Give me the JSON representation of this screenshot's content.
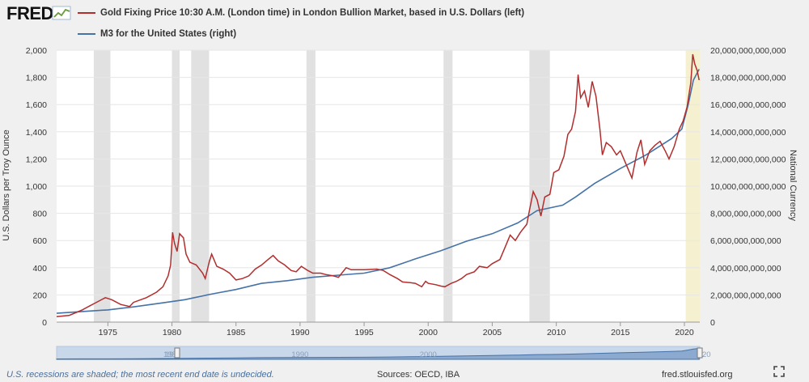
{
  "header": {
    "logo_text": "FRED"
  },
  "footer": {
    "note": "U.S. recessions are shaded; the most recent end date is undecided.",
    "sources": "Sources: OECD, IBA",
    "url": "fred.stlouisfed.org"
  },
  "chart_data": {
    "type": "line",
    "series": [
      {
        "name": "Gold Fixing Price 10:30 A.M. (London time) in London Bullion Market, based in U.S. Dollars (left)",
        "axis": "left",
        "color": "#b22e2e",
        "points": [
          [
            1971.0,
            40
          ],
          [
            1972.0,
            50
          ],
          [
            1973.0,
            90
          ],
          [
            1973.6,
            120
          ],
          [
            1974.0,
            140
          ],
          [
            1974.8,
            180
          ],
          [
            1975.3,
            165
          ],
          [
            1976.0,
            130
          ],
          [
            1976.7,
            115
          ],
          [
            1977.0,
            145
          ],
          [
            1978.0,
            180
          ],
          [
            1978.8,
            220
          ],
          [
            1979.3,
            260
          ],
          [
            1979.7,
            340
          ],
          [
            1979.9,
            420
          ],
          [
            1980.05,
            660
          ],
          [
            1980.2,
            580
          ],
          [
            1980.4,
            520
          ],
          [
            1980.6,
            650
          ],
          [
            1980.9,
            620
          ],
          [
            1981.1,
            500
          ],
          [
            1981.4,
            440
          ],
          [
            1981.9,
            420
          ],
          [
            1982.4,
            360
          ],
          [
            1982.6,
            320
          ],
          [
            1982.9,
            440
          ],
          [
            1983.1,
            500
          ],
          [
            1983.5,
            410
          ],
          [
            1984.0,
            390
          ],
          [
            1984.5,
            360
          ],
          [
            1985.0,
            310
          ],
          [
            1985.5,
            320
          ],
          [
            1986.0,
            340
          ],
          [
            1986.5,
            390
          ],
          [
            1987.0,
            420
          ],
          [
            1987.5,
            460
          ],
          [
            1987.9,
            490
          ],
          [
            1988.3,
            450
          ],
          [
            1988.8,
            420
          ],
          [
            1989.3,
            380
          ],
          [
            1989.7,
            370
          ],
          [
            1990.1,
            410
          ],
          [
            1990.6,
            380
          ],
          [
            1991.0,
            360
          ],
          [
            1991.6,
            360
          ],
          [
            1992.0,
            350
          ],
          [
            1992.6,
            340
          ],
          [
            1993.0,
            330
          ],
          [
            1993.6,
            400
          ],
          [
            1994.0,
            385
          ],
          [
            1995.0,
            385
          ],
          [
            1996.0,
            390
          ],
          [
            1996.5,
            380
          ],
          [
            1997.0,
            350
          ],
          [
            1997.6,
            320
          ],
          [
            1998.0,
            295
          ],
          [
            1998.6,
            290
          ],
          [
            1999.0,
            285
          ],
          [
            1999.5,
            260
          ],
          [
            1999.8,
            300
          ],
          [
            2000.0,
            285
          ],
          [
            2000.6,
            275
          ],
          [
            2001.0,
            265
          ],
          [
            2001.3,
            260
          ],
          [
            2001.8,
            285
          ],
          [
            2002.2,
            300
          ],
          [
            2002.6,
            320
          ],
          [
            2003.0,
            350
          ],
          [
            2003.6,
            370
          ],
          [
            2004.0,
            410
          ],
          [
            2004.6,
            400
          ],
          [
            2005.0,
            430
          ],
          [
            2005.6,
            460
          ],
          [
            2006.0,
            550
          ],
          [
            2006.4,
            640
          ],
          [
            2006.8,
            600
          ],
          [
            2007.2,
            660
          ],
          [
            2007.7,
            720
          ],
          [
            2007.9,
            820
          ],
          [
            2008.2,
            960
          ],
          [
            2008.5,
            900
          ],
          [
            2008.8,
            780
          ],
          [
            2009.1,
            920
          ],
          [
            2009.5,
            940
          ],
          [
            2009.8,
            1100
          ],
          [
            2010.2,
            1120
          ],
          [
            2010.6,
            1220
          ],
          [
            2010.9,
            1380
          ],
          [
            2011.2,
            1420
          ],
          [
            2011.5,
            1550
          ],
          [
            2011.7,
            1820
          ],
          [
            2011.9,
            1650
          ],
          [
            2012.2,
            1700
          ],
          [
            2012.5,
            1580
          ],
          [
            2012.8,
            1770
          ],
          [
            2013.1,
            1660
          ],
          [
            2013.4,
            1420
          ],
          [
            2013.6,
            1230
          ],
          [
            2013.9,
            1320
          ],
          [
            2014.3,
            1290
          ],
          [
            2014.7,
            1230
          ],
          [
            2015.0,
            1260
          ],
          [
            2015.5,
            1150
          ],
          [
            2015.9,
            1060
          ],
          [
            2016.3,
            1250
          ],
          [
            2016.6,
            1340
          ],
          [
            2016.9,
            1160
          ],
          [
            2017.3,
            1260
          ],
          [
            2017.7,
            1300
          ],
          [
            2018.1,
            1330
          ],
          [
            2018.5,
            1260
          ],
          [
            2018.8,
            1200
          ],
          [
            2019.2,
            1290
          ],
          [
            2019.6,
            1420
          ],
          [
            2019.9,
            1480
          ],
          [
            2020.2,
            1580
          ],
          [
            2020.5,
            1760
          ],
          [
            2020.65,
            1970
          ],
          [
            2020.8,
            1900
          ],
          [
            2021.0,
            1850
          ],
          [
            2021.15,
            1780
          ]
        ]
      },
      {
        "name": "M3 for the United States (right)",
        "axis": "right",
        "color": "#4572a7",
        "points": [
          [
            1971.0,
            650000000000
          ],
          [
            1973.0,
            780000000000
          ],
          [
            1975.0,
            900000000000
          ],
          [
            1977.0,
            1120000000000
          ],
          [
            1979.0,
            1380000000000
          ],
          [
            1981.0,
            1650000000000
          ],
          [
            1983.0,
            2050000000000
          ],
          [
            1985.0,
            2400000000000
          ],
          [
            1987.0,
            2850000000000
          ],
          [
            1989.0,
            3050000000000
          ],
          [
            1991.0,
            3300000000000
          ],
          [
            1993.0,
            3450000000000
          ],
          [
            1995.0,
            3600000000000
          ],
          [
            1997.0,
            4000000000000
          ],
          [
            1999.0,
            4650000000000
          ],
          [
            2001.0,
            5250000000000
          ],
          [
            2003.0,
            5950000000000
          ],
          [
            2005.0,
            6500000000000
          ],
          [
            2007.0,
            7300000000000
          ],
          [
            2008.5,
            8200000000000
          ],
          [
            2009.5,
            8400000000000
          ],
          [
            2010.5,
            8600000000000
          ],
          [
            2011.5,
            9200000000000
          ],
          [
            2013.0,
            10200000000000
          ],
          [
            2015.0,
            11300000000000
          ],
          [
            2017.0,
            12300000000000
          ],
          [
            2019.0,
            13500000000000
          ],
          [
            2019.8,
            14200000000000
          ],
          [
            2020.3,
            16000000000000
          ],
          [
            2020.7,
            17800000000000
          ],
          [
            2021.15,
            18600000000000
          ]
        ]
      }
    ],
    "x_range": [
      1971.0,
      2021.2
    ],
    "x_ticks": [
      1975,
      1980,
      1985,
      1990,
      1995,
      2000,
      2005,
      2010,
      2015,
      2020
    ],
    "y_left": {
      "label": "U.S. Dollars per Troy Ounce",
      "range": [
        0,
        2000
      ],
      "ticks": [
        0,
        200,
        400,
        600,
        800,
        1000,
        1200,
        1400,
        1600,
        1800,
        2000
      ],
      "tick_labels": [
        "0",
        "200",
        "400",
        "600",
        "800",
        "1,000",
        "1,200",
        "1,400",
        "1,600",
        "1,800",
        "2,000"
      ]
    },
    "y_right": {
      "label": "National Currency",
      "range": [
        0,
        20000000000000
      ],
      "ticks": [
        0,
        2000000000000,
        4000000000000,
        6000000000000,
        8000000000000,
        10000000000000,
        12000000000000,
        14000000000000,
        16000000000000,
        18000000000000,
        20000000000000
      ],
      "tick_labels": [
        "0",
        "2,000,000,000,000",
        "4,000,000,000,000",
        "6,000,000,000,000",
        "8,000,000,000,000",
        "10,000,000,000,000",
        "12,000,000,000,000",
        "14,000,000,000,000",
        "16,000,000,000,000",
        "18,000,000,000,000",
        "20,000,000,000,000"
      ]
    },
    "recessions": [
      [
        1973.9,
        1975.2
      ],
      [
        1980.0,
        1980.6
      ],
      [
        1981.5,
        1982.9
      ],
      [
        1990.5,
        1991.2
      ],
      [
        2001.2,
        2001.9
      ],
      [
        2007.9,
        2009.5
      ]
    ],
    "undecided_recession": [
      2020.1,
      2021.2
    ],
    "navigator": {
      "tick_labels": [
        "1980",
        "1990",
        "2000"
      ],
      "edge_labels": [
        "19",
        "20"
      ]
    },
    "grid": true,
    "legend_position": "top-left"
  },
  "colors": {
    "background": "#f0f0f0",
    "plot": "#ffffff",
    "recession": "#e1e1e1",
    "undecided": "#f5f1d0",
    "grid": "#e6e6e6"
  }
}
